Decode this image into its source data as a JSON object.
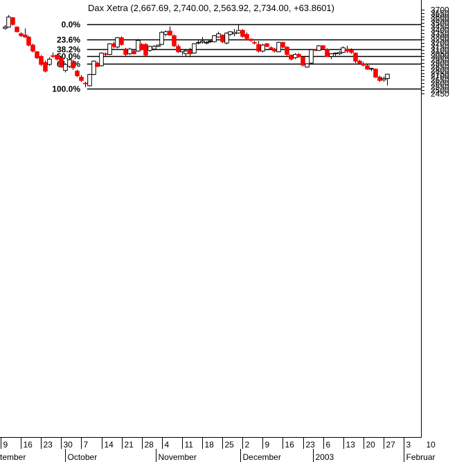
{
  "chart_data": {
    "type": "candlestick",
    "title": "Dax Xetra (2,667.69, 2,740.00, 2,563.92, 2,734.00, +63.8601)",
    "ylim": [
      2400,
      3720
    ],
    "y_ticks": [
      2450,
      2500,
      2550,
      2600,
      2650,
      2700,
      2750,
      2800,
      2850,
      2900,
      2950,
      3000,
      3050,
      3100,
      3150,
      3200,
      3250,
      3300,
      3350,
      3400,
      3450,
      3500,
      3550,
      3600,
      3650,
      3700
    ],
    "x_range": [
      -0.6,
      101.2
    ],
    "x_day_ticks": [
      {
        "label": "9",
        "i": 0
      },
      {
        "label": "16",
        "i": 5
      },
      {
        "label": "23",
        "i": 10
      },
      {
        "label": "30",
        "i": 15
      },
      {
        "label": "7",
        "i": 20
      },
      {
        "label": "14",
        "i": 25
      },
      {
        "label": "21",
        "i": 30
      },
      {
        "label": "28",
        "i": 35
      },
      {
        "label": "4",
        "i": 40
      },
      {
        "label": "11",
        "i": 45
      },
      {
        "label": "18",
        "i": 50
      },
      {
        "label": "25",
        "i": 55
      },
      {
        "label": "2",
        "i": 60
      },
      {
        "label": "9",
        "i": 65
      },
      {
        "label": "16",
        "i": 70
      },
      {
        "label": "23",
        "i": 75
      },
      {
        "label": "6",
        "i": 80
      },
      {
        "label": "13",
        "i": 85
      },
      {
        "label": "20",
        "i": 90
      },
      {
        "label": "27",
        "i": 95
      },
      {
        "label": "3",
        "i": 100
      },
      {
        "label": "10",
        "i": 105
      }
    ],
    "x_month_ticks": [
      {
        "label": "tember",
        "i": -0.6
      },
      {
        "label": "October",
        "i": 16
      },
      {
        "label": "November",
        "i": 38.5
      },
      {
        "label": "December",
        "i": 59.5
      },
      {
        "label": "2003",
        "i": 77.5
      },
      {
        "label": "Februar",
        "i": 100
      }
    ],
    "fib_levels": [
      {
        "label": "0.0%",
        "value": 3480
      },
      {
        "label": "23.6%",
        "value": 3253
      },
      {
        "label": "38.2%",
        "value": 3113
      },
      {
        "label": "50.0%",
        "value": 3000
      },
      {
        "label": "61.8%",
        "value": 2887
      },
      {
        "label": "100.0%",
        "value": 2520
      }
    ],
    "fib_x_start": 21,
    "colors": {
      "up": "#ffffff",
      "down": "#ff0000",
      "line": "#000000"
    },
    "candles": [
      {
        "i": 0,
        "o": 3420,
        "h": 3470,
        "l": 3400,
        "c": 3440
      },
      {
        "i": 1,
        "o": 3440,
        "h": 3620,
        "l": 3430,
        "c": 3590
      },
      {
        "i": 2,
        "o": 3580,
        "h": 3590,
        "l": 3460,
        "c": 3480
      },
      {
        "i": 3,
        "o": 3440,
        "h": 3450,
        "l": 3360,
        "c": 3370
      },
      {
        "i": 4,
        "o": 3340,
        "h": 3360,
        "l": 3290,
        "c": 3310
      },
      {
        "i": 5,
        "o": 3320,
        "h": 3420,
        "l": 3280,
        "c": 3290
      },
      {
        "i": 6,
        "o": 3290,
        "h": 3310,
        "l": 3150,
        "c": 3170
      },
      {
        "i": 7,
        "o": 3170,
        "h": 3190,
        "l": 3060,
        "c": 3080
      },
      {
        "i": 8,
        "o": 3070,
        "h": 3080,
        "l": 2960,
        "c": 2980
      },
      {
        "i": 9,
        "o": 3000,
        "h": 3020,
        "l": 2860,
        "c": 2880
      },
      {
        "i": 10,
        "o": 2910,
        "h": 2940,
        "l": 2760,
        "c": 2780
      },
      {
        "i": 11,
        "o": 2880,
        "h": 2990,
        "l": 2860,
        "c": 2960
      },
      {
        "i": 12,
        "o": 3010,
        "h": 3060,
        "l": 2980,
        "c": 3000
      },
      {
        "i": 13,
        "o": 3020,
        "h": 3030,
        "l": 2940,
        "c": 2960
      },
      {
        "i": 14,
        "o": 2980,
        "h": 3000,
        "l": 2830,
        "c": 2840
      },
      {
        "i": 15,
        "o": 2790,
        "h": 2900,
        "l": 2760,
        "c": 2880
      },
      {
        "i": 16,
        "o": 2850,
        "h": 2980,
        "l": 2830,
        "c": 2950
      },
      {
        "i": 17,
        "o": 2910,
        "h": 2950,
        "l": 2800,
        "c": 2830
      },
      {
        "i": 18,
        "o": 2780,
        "h": 2800,
        "l": 2690,
        "c": 2710
      },
      {
        "i": 19,
        "o": 2690,
        "h": 2720,
        "l": 2620,
        "c": 2640
      },
      {
        "i": 20,
        "o": 2600,
        "h": 2620,
        "l": 2540,
        "c": 2590
      },
      {
        "i": 21,
        "o": 2560,
        "h": 2740,
        "l": 2550,
        "c": 2730
      },
      {
        "i": 22,
        "o": 2730,
        "h": 2940,
        "l": 2720,
        "c": 2930
      },
      {
        "i": 23,
        "o": 2900,
        "h": 2920,
        "l": 2840,
        "c": 2850
      },
      {
        "i": 24,
        "o": 2860,
        "h": 3060,
        "l": 2850,
        "c": 3050
      },
      {
        "i": 25,
        "o": 3040,
        "h": 3060,
        "l": 3000,
        "c": 3030
      },
      {
        "i": 26,
        "o": 3030,
        "h": 3200,
        "l": 3020,
        "c": 3190
      },
      {
        "i": 27,
        "o": 3190,
        "h": 3220,
        "l": 3120,
        "c": 3150
      },
      {
        "i": 28,
        "o": 3140,
        "h": 3290,
        "l": 3120,
        "c": 3280
      },
      {
        "i": 29,
        "o": 3280,
        "h": 3300,
        "l": 3160,
        "c": 3180
      },
      {
        "i": 30,
        "o": 3110,
        "h": 3130,
        "l": 3000,
        "c": 3030
      },
      {
        "i": 31,
        "o": 3040,
        "h": 3130,
        "l": 3020,
        "c": 3110
      },
      {
        "i": 32,
        "o": 3080,
        "h": 3100,
        "l": 3030,
        "c": 3040
      },
      {
        "i": 33,
        "o": 3080,
        "h": 3260,
        "l": 3070,
        "c": 3240
      },
      {
        "i": 34,
        "o": 3180,
        "h": 3200,
        "l": 3090,
        "c": 3100
      },
      {
        "i": 35,
        "o": 3180,
        "h": 3200,
        "l": 3000,
        "c": 3020
      },
      {
        "i": 36,
        "o": 3090,
        "h": 3160,
        "l": 3070,
        "c": 3150
      },
      {
        "i": 37,
        "o": 3110,
        "h": 3170,
        "l": 3090,
        "c": 3150
      },
      {
        "i": 38,
        "o": 3150,
        "h": 3180,
        "l": 3140,
        "c": 3170
      },
      {
        "i": 39,
        "o": 3180,
        "h": 3380,
        "l": 3170,
        "c": 3360
      },
      {
        "i": 40,
        "o": 3330,
        "h": 3390,
        "l": 3300,
        "c": 3370
      },
      {
        "i": 41,
        "o": 3380,
        "h": 3450,
        "l": 3310,
        "c": 3320
      },
      {
        "i": 42,
        "o": 3310,
        "h": 3330,
        "l": 3140,
        "c": 3160
      },
      {
        "i": 43,
        "o": 3150,
        "h": 3180,
        "l": 3050,
        "c": 3070
      },
      {
        "i": 44,
        "o": 3070,
        "h": 3110,
        "l": 3020,
        "c": 3100
      },
      {
        "i": 45,
        "o": 3040,
        "h": 3110,
        "l": 3000,
        "c": 3080
      },
      {
        "i": 46,
        "o": 3090,
        "h": 3130,
        "l": 2990,
        "c": 3040
      },
      {
        "i": 47,
        "o": 3050,
        "h": 3200,
        "l": 3040,
        "c": 3190
      },
      {
        "i": 48,
        "o": 3200,
        "h": 3240,
        "l": 3180,
        "c": 3210
      },
      {
        "i": 49,
        "o": 3210,
        "h": 3290,
        "l": 3190,
        "c": 3230
      },
      {
        "i": 50,
        "o": 3210,
        "h": 3230,
        "l": 3180,
        "c": 3210
      },
      {
        "i": 51,
        "o": 3230,
        "h": 3250,
        "l": 3200,
        "c": 3230
      },
      {
        "i": 52,
        "o": 3220,
        "h": 3320,
        "l": 3210,
        "c": 3310
      },
      {
        "i": 53,
        "o": 3290,
        "h": 3370,
        "l": 3280,
        "c": 3340
      },
      {
        "i": 54,
        "o": 3320,
        "h": 3330,
        "l": 3200,
        "c": 3220
      },
      {
        "i": 55,
        "o": 3200,
        "h": 3360,
        "l": 3180,
        "c": 3350
      },
      {
        "i": 56,
        "o": 3330,
        "h": 3380,
        "l": 3310,
        "c": 3370
      },
      {
        "i": 57,
        "o": 3340,
        "h": 3410,
        "l": 3300,
        "c": 3360
      },
      {
        "i": 58,
        "o": 3350,
        "h": 3480,
        "l": 3340,
        "c": 3390
      },
      {
        "i": 59,
        "o": 3390,
        "h": 3410,
        "l": 3280,
        "c": 3300
      },
      {
        "i": 60,
        "o": 3330,
        "h": 3360,
        "l": 3240,
        "c": 3270
      },
      {
        "i": 61,
        "o": 3260,
        "h": 3270,
        "l": 3220,
        "c": 3240
      },
      {
        "i": 62,
        "o": 3210,
        "h": 3230,
        "l": 3180,
        "c": 3200
      },
      {
        "i": 63,
        "o": 3180,
        "h": 3230,
        "l": 3060,
        "c": 3080
      },
      {
        "i": 64,
        "o": 3080,
        "h": 3190,
        "l": 3060,
        "c": 3170
      },
      {
        "i": 65,
        "o": 3190,
        "h": 3200,
        "l": 3140,
        "c": 3150
      },
      {
        "i": 66,
        "o": 3130,
        "h": 3150,
        "l": 3100,
        "c": 3120
      },
      {
        "i": 67,
        "o": 3110,
        "h": 3130,
        "l": 3060,
        "c": 3080
      },
      {
        "i": 68,
        "o": 3070,
        "h": 3220,
        "l": 3060,
        "c": 3210
      },
      {
        "i": 69,
        "o": 3210,
        "h": 3220,
        "l": 3120,
        "c": 3140
      },
      {
        "i": 70,
        "o": 3140,
        "h": 3150,
        "l": 3010,
        "c": 3030
      },
      {
        "i": 71,
        "o": 3020,
        "h": 3030,
        "l": 2940,
        "c": 2960
      },
      {
        "i": 72,
        "o": 2980,
        "h": 3050,
        "l": 2960,
        "c": 3030
      },
      {
        "i": 73,
        "o": 3030,
        "h": 3050,
        "l": 2980,
        "c": 3000
      },
      {
        "i": 74,
        "o": 2990,
        "h": 3000,
        "l": 2850,
        "c": 2870
      },
      {
        "i": 75,
        "o": 2840,
        "h": 2900,
        "l": 2830,
        "c": 2890
      },
      {
        "i": 76,
        "o": 2900,
        "h": 3100,
        "l": 2880,
        "c": 3100
      },
      {
        "i": 77,
        "o": 3100,
        "h": 3110,
        "l": 3080,
        "c": 3090
      },
      {
        "i": 78,
        "o": 3090,
        "h": 3170,
        "l": 3080,
        "c": 3160
      },
      {
        "i": 79,
        "o": 3160,
        "h": 3170,
        "l": 3100,
        "c": 3120
      },
      {
        "i": 80,
        "o": 3100,
        "h": 3120,
        "l": 3000,
        "c": 3000
      },
      {
        "i": 81,
        "o": 3000,
        "h": 3050,
        "l": 2960,
        "c": 3040
      },
      {
        "i": 82,
        "o": 3040,
        "h": 3060,
        "l": 3010,
        "c": 3050
      },
      {
        "i": 83,
        "o": 3040,
        "h": 3080,
        "l": 3020,
        "c": 3060
      },
      {
        "i": 84,
        "o": 3060,
        "h": 3150,
        "l": 3050,
        "c": 3130
      },
      {
        "i": 85,
        "o": 3110,
        "h": 3160,
        "l": 3050,
        "c": 3080
      },
      {
        "i": 86,
        "o": 3090,
        "h": 3120,
        "l": 3040,
        "c": 3060
      },
      {
        "i": 87,
        "o": 3050,
        "h": 3060,
        "l": 2900,
        "c": 2930
      },
      {
        "i": 88,
        "o": 2930,
        "h": 2950,
        "l": 2880,
        "c": 2900
      },
      {
        "i": 89,
        "o": 2890,
        "h": 2920,
        "l": 2850,
        "c": 2870
      },
      {
        "i": 90,
        "o": 2860,
        "h": 2880,
        "l": 2800,
        "c": 2810
      },
      {
        "i": 91,
        "o": 2810,
        "h": 2830,
        "l": 2780,
        "c": 2820
      },
      {
        "i": 92,
        "o": 2810,
        "h": 2820,
        "l": 2680,
        "c": 2690
      },
      {
        "i": 93,
        "o": 2690,
        "h": 2710,
        "l": 2620,
        "c": 2640
      },
      {
        "i": 94,
        "o": 2650,
        "h": 2700,
        "l": 2620,
        "c": 2670
      },
      {
        "i": 95,
        "o": 2668,
        "h": 2740,
        "l": 2564,
        "c": 2734
      }
    ]
  }
}
